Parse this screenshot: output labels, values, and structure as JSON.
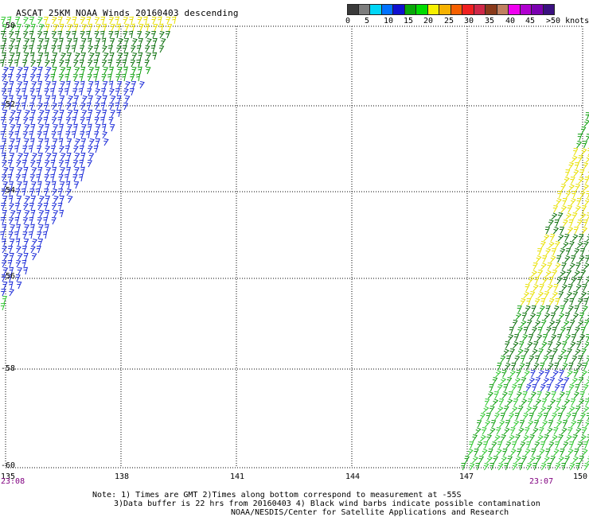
{
  "title": "ASCAT 25KM NOAA Winds 20160403 descending",
  "colorbar": {
    "colors": [
      "#3a3a3a",
      "#7d7d7d",
      "#00d6f6",
      "#0072ff",
      "#1010d0",
      "#08a808",
      "#00dc00",
      "#f6f000",
      "#f6b200",
      "#f66000",
      "#f02020",
      "#d02848",
      "#8a3a1a",
      "#c08060",
      "#f000f0",
      "#b000d0",
      "#7a00b0",
      "#3a1080"
    ],
    "labels": [
      "0",
      "5",
      "10",
      "15",
      "20",
      "25",
      "30",
      "35",
      "40",
      "45",
      ">50 knots"
    ]
  },
  "axes": {
    "lat_labels": [
      "-50",
      "-52",
      "-54",
      "-56",
      "-58",
      "-60"
    ],
    "lon_labels": [
      "135",
      "138",
      "141",
      "144",
      "147",
      "150"
    ]
  },
  "times": {
    "left": "23:08",
    "right": "23:07"
  },
  "notes": {
    "line1": "Note: 1) Times are GMT 2)Times along bottom correspond to measurement at -55S",
    "line2": "3)Data buffer is 22 hrs from 20160403 4) Black wind barbs indicate possible contamination",
    "line3": "NOAA/NESDIS/Center for Satellite Applications and Research"
  },
  "wind_colors": {
    "yellow": "#e8e000",
    "lightgreen": "#2ec82e",
    "green": "#10a010",
    "darkgreen": "#0a6e0a",
    "blue": "#1a2ad8"
  }
}
